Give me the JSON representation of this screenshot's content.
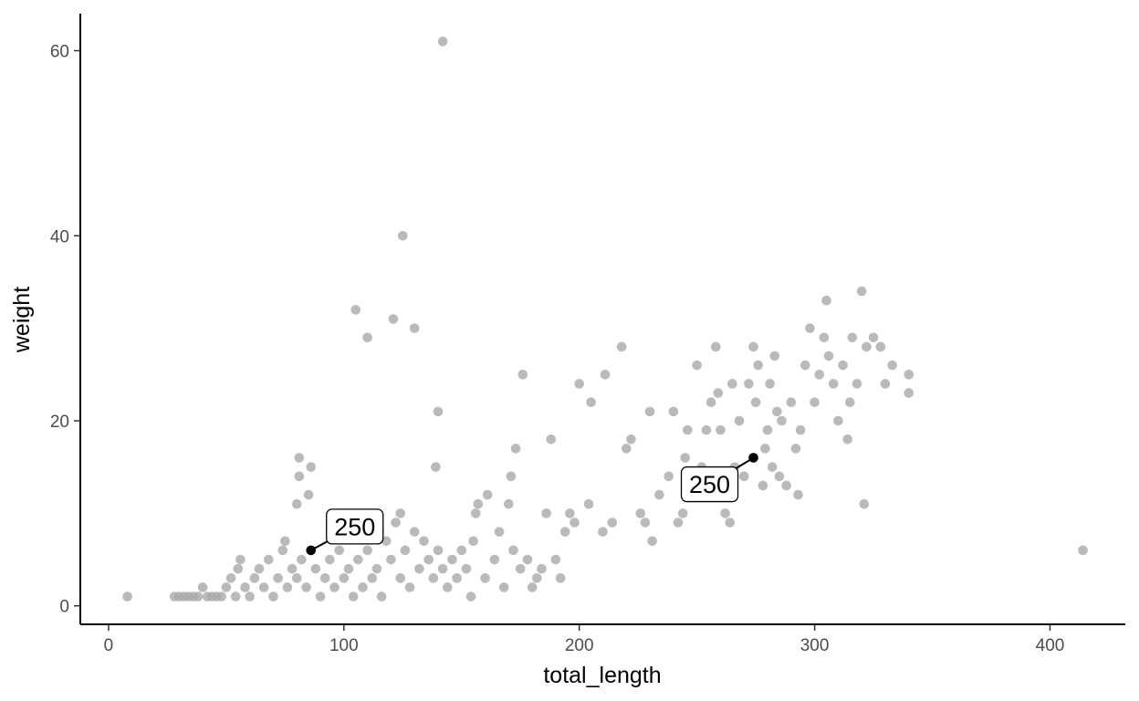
{
  "chart_data": {
    "type": "scatter",
    "title": "",
    "xlabel": "total_length",
    "ylabel": "weight",
    "xlim": [
      -12,
      432
    ],
    "ylim": [
      -2,
      64
    ],
    "xticks": [
      0,
      100,
      200,
      300,
      400
    ],
    "yticks": [
      0,
      20,
      40,
      60
    ],
    "grid": false,
    "point_color": "#a9a9a9",
    "highlight_color": "#000000",
    "points": [
      [
        8,
        1
      ],
      [
        28,
        1
      ],
      [
        30,
        1
      ],
      [
        32,
        1
      ],
      [
        34,
        1
      ],
      [
        36,
        1
      ],
      [
        38,
        1
      ],
      [
        40,
        2
      ],
      [
        42,
        1
      ],
      [
        44,
        1
      ],
      [
        46,
        1
      ],
      [
        48,
        1
      ],
      [
        50,
        2
      ],
      [
        52,
        3
      ],
      [
        54,
        1
      ],
      [
        55,
        4
      ],
      [
        56,
        5
      ],
      [
        58,
        2
      ],
      [
        60,
        1
      ],
      [
        62,
        3
      ],
      [
        64,
        4
      ],
      [
        66,
        2
      ],
      [
        68,
        5
      ],
      [
        70,
        1
      ],
      [
        72,
        3
      ],
      [
        74,
        6
      ],
      [
        75,
        7
      ],
      [
        76,
        2
      ],
      [
        78,
        4
      ],
      [
        80,
        3
      ],
      [
        80,
        11
      ],
      [
        81,
        16
      ],
      [
        81,
        14
      ],
      [
        82,
        5
      ],
      [
        84,
        2
      ],
      [
        85,
        12
      ],
      [
        86,
        15
      ],
      [
        88,
        4
      ],
      [
        90,
        1
      ],
      [
        92,
        3
      ],
      [
        94,
        5
      ],
      [
        96,
        2
      ],
      [
        98,
        6
      ],
      [
        100,
        3
      ],
      [
        102,
        4
      ],
      [
        104,
        1
      ],
      [
        105,
        32
      ],
      [
        106,
        5
      ],
      [
        108,
        2
      ],
      [
        110,
        29
      ],
      [
        110,
        6
      ],
      [
        112,
        3
      ],
      [
        114,
        4
      ],
      [
        115,
        8
      ],
      [
        116,
        1
      ],
      [
        118,
        7
      ],
      [
        120,
        5
      ],
      [
        121,
        31
      ],
      [
        122,
        9
      ],
      [
        124,
        3
      ],
      [
        124,
        10
      ],
      [
        125,
        40
      ],
      [
        126,
        6
      ],
      [
        128,
        2
      ],
      [
        130,
        30
      ],
      [
        130,
        8
      ],
      [
        132,
        4
      ],
      [
        134,
        7
      ],
      [
        136,
        5
      ],
      [
        138,
        3
      ],
      [
        139,
        15
      ],
      [
        140,
        21
      ],
      [
        140,
        6
      ],
      [
        142,
        61
      ],
      [
        142,
        4
      ],
      [
        144,
        2
      ],
      [
        146,
        5
      ],
      [
        148,
        3
      ],
      [
        150,
        6
      ],
      [
        152,
        4
      ],
      [
        154,
        1
      ],
      [
        155,
        7
      ],
      [
        156,
        10
      ],
      [
        157,
        11
      ],
      [
        160,
        3
      ],
      [
        161,
        12
      ],
      [
        164,
        5
      ],
      [
        166,
        8
      ],
      [
        168,
        2
      ],
      [
        170,
        11
      ],
      [
        171,
        14
      ],
      [
        172,
        6
      ],
      [
        173,
        17
      ],
      [
        175,
        4
      ],
      [
        176,
        25
      ],
      [
        178,
        5
      ],
      [
        180,
        2
      ],
      [
        182,
        3
      ],
      [
        184,
        4
      ],
      [
        186,
        10
      ],
      [
        188,
        18
      ],
      [
        190,
        5
      ],
      [
        192,
        3
      ],
      [
        194,
        8
      ],
      [
        196,
        10
      ],
      [
        198,
        9
      ],
      [
        200,
        24
      ],
      [
        204,
        11
      ],
      [
        205,
        22
      ],
      [
        210,
        8
      ],
      [
        211,
        25
      ],
      [
        214,
        9
      ],
      [
        218,
        28
      ],
      [
        220,
        17
      ],
      [
        222,
        18
      ],
      [
        226,
        10
      ],
      [
        228,
        9
      ],
      [
        230,
        21
      ],
      [
        231,
        7
      ],
      [
        234,
        12
      ],
      [
        238,
        14
      ],
      [
        240,
        21
      ],
      [
        242,
        9
      ],
      [
        244,
        10
      ],
      [
        245,
        16
      ],
      [
        246,
        19
      ],
      [
        248,
        12
      ],
      [
        250,
        26
      ],
      [
        252,
        15
      ],
      [
        254,
        19
      ],
      [
        256,
        22
      ],
      [
        258,
        28
      ],
      [
        259,
        23
      ],
      [
        260,
        19
      ],
      [
        262,
        10
      ],
      [
        264,
        9
      ],
      [
        265,
        24
      ],
      [
        266,
        15
      ],
      [
        268,
        20
      ],
      [
        270,
        14
      ],
      [
        272,
        24
      ],
      [
        274,
        28
      ],
      [
        275,
        22
      ],
      [
        276,
        26
      ],
      [
        278,
        13
      ],
      [
        279,
        17
      ],
      [
        280,
        19
      ],
      [
        281,
        24
      ],
      [
        282,
        15
      ],
      [
        283,
        27
      ],
      [
        284,
        21
      ],
      [
        285,
        14
      ],
      [
        286,
        20
      ],
      [
        288,
        13
      ],
      [
        290,
        22
      ],
      [
        292,
        17
      ],
      [
        293,
        12
      ],
      [
        294,
        19
      ],
      [
        296,
        26
      ],
      [
        298,
        30
      ],
      [
        300,
        22
      ],
      [
        302,
        25
      ],
      [
        304,
        29
      ],
      [
        305,
        33
      ],
      [
        306,
        27
      ],
      [
        308,
        24
      ],
      [
        310,
        20
      ],
      [
        312,
        26
      ],
      [
        314,
        18
      ],
      [
        315,
        22
      ],
      [
        316,
        29
      ],
      [
        318,
        24
      ],
      [
        320,
        34
      ],
      [
        321,
        11
      ],
      [
        322,
        28
      ],
      [
        325,
        29
      ],
      [
        328,
        28
      ],
      [
        330,
        24
      ],
      [
        333,
        26
      ],
      [
        340,
        25
      ],
      [
        340,
        23
      ],
      [
        414,
        6
      ]
    ],
    "highlighted_points": [
      {
        "x": 86,
        "y": 6,
        "label": "250"
      },
      {
        "x": 274,
        "y": 16,
        "label": "250"
      }
    ]
  }
}
